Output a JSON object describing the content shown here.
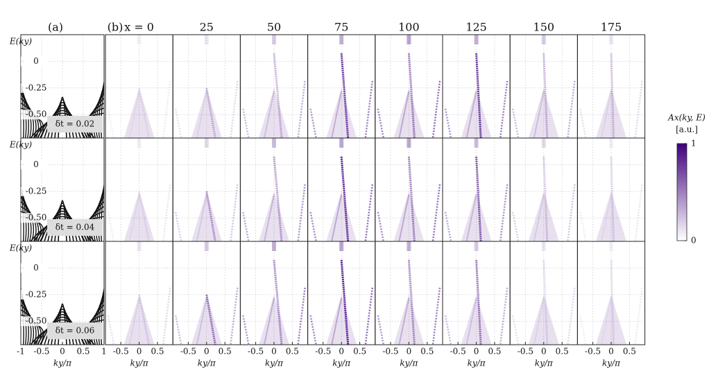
{
  "figure": {
    "panel_a_label": "(a)",
    "panel_b_label": "(b)",
    "column_titles": [
      "x = 0",
      "25",
      "50",
      "75",
      "100",
      "125",
      "150",
      "175"
    ],
    "row_labels": [
      "δt = 0.02",
      "δt = 0.04",
      "δt = 0.06"
    ],
    "y_axis_label": "E(ky)",
    "x_axis_label": "ky/π",
    "ylim": [
      -0.72,
      0.25
    ],
    "yticks": [
      0,
      -0.25,
      {
        "value": -0.5,
        "label": "-0.50"
      }
    ],
    "panel_a_xlim": [
      -1,
      1
    ],
    "panel_a_xticks": [
      -1,
      -0.5,
      0,
      0.5,
      1
    ],
    "panel_b_xlim": [
      -0.92,
      0.92
    ],
    "panel_b_xticks": [
      -0.5,
      0,
      0.5
    ],
    "colorbar": {
      "title": "Ax(ky, E)",
      "unit": "[a.u.]",
      "ticks": [
        0,
        1
      ],
      "colors": [
        "#ffffff",
        "#3f007d"
      ]
    }
  }
}
